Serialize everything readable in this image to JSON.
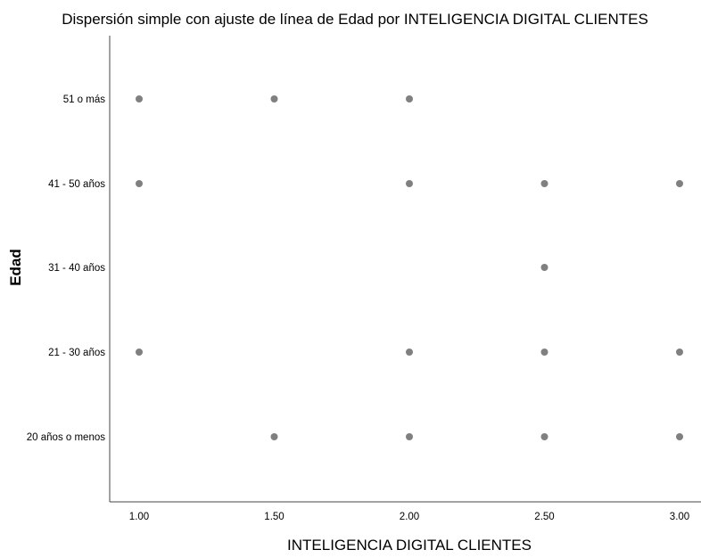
{
  "chart_data": {
    "type": "scatter",
    "title": "Dispersión simple con ajuste de línea de Edad por INTELIGENCIA DIGITAL CLIENTES",
    "xlabel": "INTELIGENCIA DIGITAL CLIENTES",
    "ylabel": "Edad",
    "x_ticks": [
      "1.00",
      "1.50",
      "2.00",
      "2.50",
      "3.00"
    ],
    "xlim": [
      0.9,
      3.03
    ],
    "y_categories": [
      "20 años o menos",
      "21 - 30 años",
      "31 - 40 años",
      "41 - 50 años",
      "51 o más"
    ],
    "grid": false,
    "legend": "none",
    "point_color": "#808080",
    "points": [
      {
        "x": 1.0,
        "y": "51 o más"
      },
      {
        "x": 1.5,
        "y": "51 o más"
      },
      {
        "x": 2.0,
        "y": "51 o más"
      },
      {
        "x": 1.0,
        "y": "41 - 50 años"
      },
      {
        "x": 2.0,
        "y": "41 - 50 años"
      },
      {
        "x": 2.5,
        "y": "41 - 50 años"
      },
      {
        "x": 3.0,
        "y": "41 - 50 años"
      },
      {
        "x": 2.5,
        "y": "31 - 40 años"
      },
      {
        "x": 1.0,
        "y": "21 - 30 años"
      },
      {
        "x": 2.0,
        "y": "21 - 30 años"
      },
      {
        "x": 2.5,
        "y": "21 - 30 años"
      },
      {
        "x": 3.0,
        "y": "21 - 30 años"
      },
      {
        "x": 1.5,
        "y": "20 años o menos"
      },
      {
        "x": 2.0,
        "y": "20 años o menos"
      },
      {
        "x": 2.5,
        "y": "20 años o menos"
      },
      {
        "x": 3.0,
        "y": "20 años o menos"
      }
    ]
  }
}
